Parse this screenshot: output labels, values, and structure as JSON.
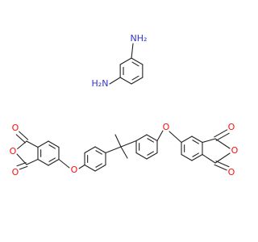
{
  "molecule_labels": [
    "NH₂",
    "H₂N",
    "O",
    "O",
    "O",
    "O",
    "O",
    "O",
    "O",
    "O"
  ]
}
